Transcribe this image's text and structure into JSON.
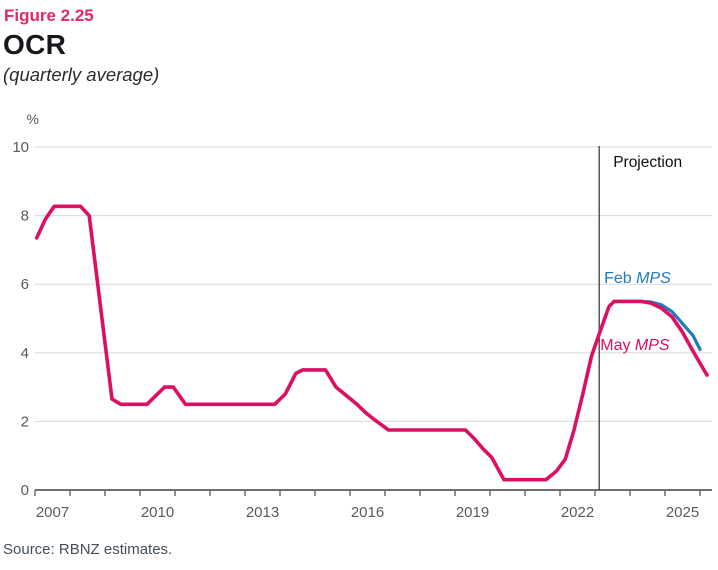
{
  "header": {
    "figure_label": "Figure 2.25",
    "title": "OCR",
    "subtitle": "(quarterly average)"
  },
  "footer": {
    "source": "Source: RBNZ estimates."
  },
  "colors": {
    "accent_pink": "#e8256a",
    "may_line": "#dc0f63",
    "feb_line": "#2379bd",
    "grid": "#d9d9d9",
    "axis": "#6f6f6f",
    "tick_text": "#5a5a5c",
    "title_text": "#17171c",
    "subtitle_text": "#2b2b30",
    "projection_text": "#0f0f0f",
    "divider": "#3c3c3c",
    "source_text": "#42505a"
  },
  "chart_data": {
    "type": "line",
    "title": "OCR (quarterly average)",
    "xlabel": "",
    "ylabel": "%",
    "ylim": [
      0,
      10
    ],
    "yticks": [
      0,
      2,
      4,
      6,
      8,
      10
    ],
    "xlim": [
      2007,
      2026.35
    ],
    "xtick_labels": [
      2007,
      2010,
      2013,
      2016,
      2019,
      2022,
      2025
    ],
    "grid": "horizontal",
    "legend_position": "inline-annotations",
    "projection": {
      "divider_year": 2023.12,
      "label": "Projection"
    },
    "series": [
      {
        "name": "Feb MPS",
        "color_key": "feb_line",
        "width": 3.2,
        "points": [
          [
            2023.55,
            5.5
          ],
          [
            2024.3,
            5.5
          ],
          [
            2024.6,
            5.48
          ],
          [
            2024.9,
            5.4
          ],
          [
            2025.2,
            5.2
          ],
          [
            2025.5,
            4.85
          ],
          [
            2025.8,
            4.5
          ],
          [
            2026.0,
            4.1
          ]
        ]
      },
      {
        "name": "May MPS",
        "color_key": "may_line",
        "width": 3.6,
        "points": [
          [
            2007.05,
            7.35
          ],
          [
            2007.3,
            7.9
          ],
          [
            2007.55,
            8.27
          ],
          [
            2008.3,
            8.27
          ],
          [
            2008.55,
            8.0
          ],
          [
            2009.2,
            2.65
          ],
          [
            2009.45,
            2.5
          ],
          [
            2010.2,
            2.5
          ],
          [
            2010.45,
            2.75
          ],
          [
            2010.7,
            3.0
          ],
          [
            2010.95,
            3.0
          ],
          [
            2011.3,
            2.5
          ],
          [
            2013.85,
            2.5
          ],
          [
            2014.15,
            2.8
          ],
          [
            2014.45,
            3.4
          ],
          [
            2014.65,
            3.5
          ],
          [
            2015.3,
            3.5
          ],
          [
            2015.6,
            3.0
          ],
          [
            2015.9,
            2.75
          ],
          [
            2016.2,
            2.5
          ],
          [
            2016.45,
            2.25
          ],
          [
            2016.7,
            2.05
          ],
          [
            2017.1,
            1.75
          ],
          [
            2019.3,
            1.75
          ],
          [
            2019.55,
            1.5
          ],
          [
            2019.8,
            1.2
          ],
          [
            2020.05,
            0.95
          ],
          [
            2020.4,
            0.3
          ],
          [
            2021.6,
            0.3
          ],
          [
            2021.9,
            0.55
          ],
          [
            2022.15,
            0.9
          ],
          [
            2022.4,
            1.75
          ],
          [
            2022.65,
            2.8
          ],
          [
            2022.9,
            3.9
          ],
          [
            2023.12,
            4.55
          ],
          [
            2023.4,
            5.35
          ],
          [
            2023.55,
            5.5
          ],
          [
            2024.3,
            5.5
          ],
          [
            2024.6,
            5.45
          ],
          [
            2024.9,
            5.3
          ],
          [
            2025.2,
            5.05
          ],
          [
            2025.5,
            4.6
          ],
          [
            2025.8,
            4.05
          ],
          [
            2026.2,
            3.35
          ]
        ]
      }
    ],
    "annotations": [
      {
        "id": "projection-label",
        "x": 2023.52,
        "y": 9.42,
        "size": 15.5,
        "color_key": "projection_text",
        "parts": [
          {
            "t": "Projection",
            "i": false
          }
        ]
      },
      {
        "id": "feb-mps-label",
        "x": 2023.26,
        "y": 6.03,
        "size": 16,
        "color_key": "feb_line",
        "parts": [
          {
            "t": "Feb ",
            "i": false
          },
          {
            "t": "MPS",
            "i": true
          }
        ]
      },
      {
        "id": "may-mps-label",
        "x": 2023.15,
        "y": 4.08,
        "size": 16,
        "color_key": "may_line",
        "parts": [
          {
            "t": "May ",
            "i": false
          },
          {
            "t": "MPS",
            "i": true
          }
        ]
      }
    ]
  }
}
